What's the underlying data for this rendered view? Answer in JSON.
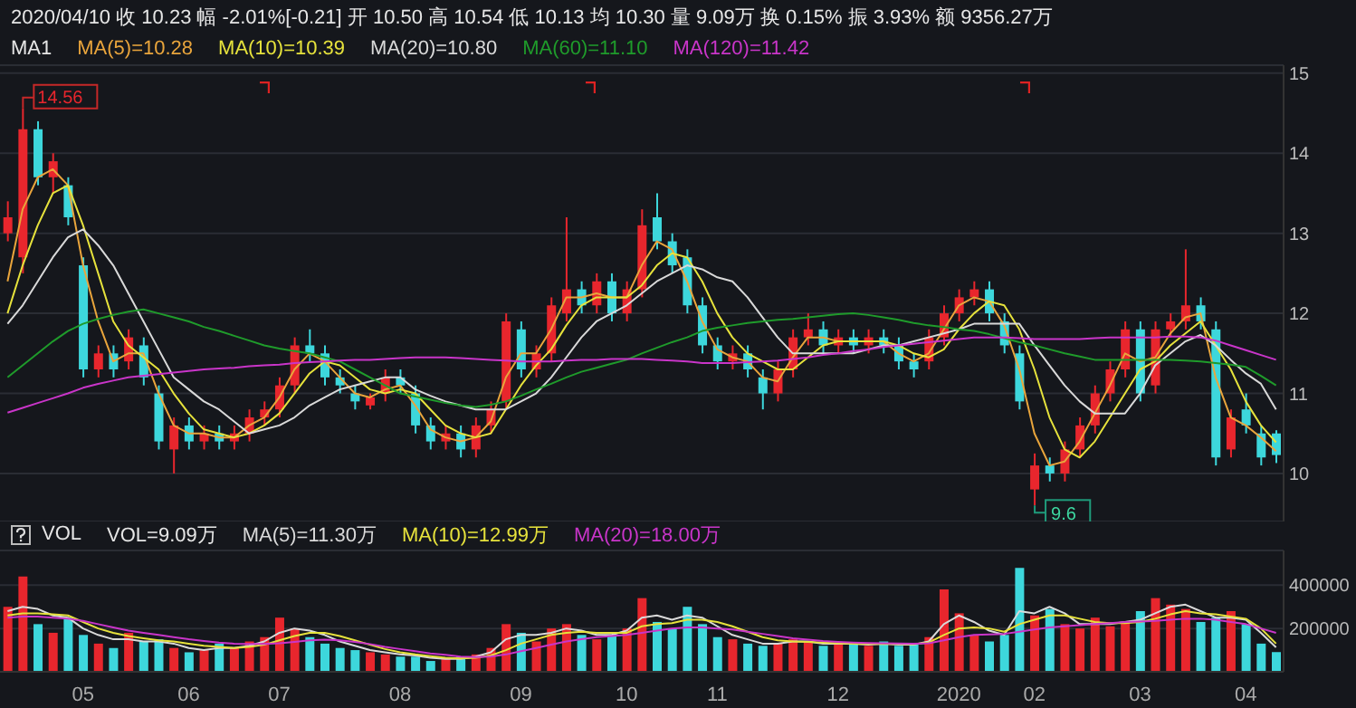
{
  "chart_data": [
    {
      "type": "candlestick",
      "title": "2020/04/10 收 10.23 幅 -2.01%[-0.21] 开 10.50 高 10.54 低 10.13 均 10.30 量 9.09万 换 0.15% 振 3.93% 额 9356.27万",
      "annotations": [
        "MA1",
        "14.56",
        "9.6"
      ],
      "categories": [
        null,
        null,
        null,
        null,
        null,
        "05",
        null,
        null,
        null,
        null,
        null,
        null,
        "06",
        null,
        null,
        null,
        null,
        null,
        "07",
        null,
        null,
        null,
        null,
        null,
        null,
        null,
        "08",
        null,
        null,
        null,
        null,
        null,
        null,
        null,
        "09",
        null,
        null,
        null,
        null,
        null,
        null,
        "10",
        null,
        null,
        null,
        null,
        null,
        "11",
        null,
        null,
        null,
        null,
        null,
        null,
        null,
        "12",
        null,
        null,
        null,
        null,
        null,
        null,
        null,
        "2020",
        null,
        null,
        null,
        null,
        "02",
        null,
        null,
        null,
        null,
        null,
        null,
        "03",
        null,
        null,
        null,
        null,
        null,
        null,
        "04",
        null,
        null
      ],
      "ohlc": [
        [
          13.0,
          13.4,
          12.9,
          13.2
        ],
        [
          12.7,
          14.56,
          12.5,
          14.3
        ],
        [
          14.3,
          14.4,
          13.6,
          13.7
        ],
        [
          13.7,
          14.0,
          13.5,
          13.9
        ],
        [
          13.6,
          13.7,
          13.1,
          13.2
        ],
        [
          12.6,
          12.7,
          11.2,
          11.3
        ],
        [
          11.3,
          11.6,
          11.2,
          11.5
        ],
        [
          11.5,
          11.6,
          11.2,
          11.3
        ],
        [
          11.4,
          11.8,
          11.3,
          11.7
        ],
        [
          11.6,
          11.7,
          11.1,
          11.2
        ],
        [
          11.0,
          11.1,
          10.3,
          10.4
        ],
        [
          10.3,
          10.7,
          10.0,
          10.6
        ],
        [
          10.6,
          10.7,
          10.3,
          10.4
        ],
        [
          10.4,
          10.6,
          10.3,
          10.5
        ],
        [
          10.5,
          10.6,
          10.3,
          10.4
        ],
        [
          10.4,
          10.6,
          10.3,
          10.5
        ],
        [
          10.5,
          10.8,
          10.4,
          10.7
        ],
        [
          10.7,
          10.9,
          10.6,
          10.8
        ],
        [
          10.8,
          11.2,
          10.7,
          11.1
        ],
        [
          11.1,
          11.7,
          11.0,
          11.6
        ],
        [
          11.6,
          11.8,
          11.4,
          11.5
        ],
        [
          11.5,
          11.6,
          11.1,
          11.2
        ],
        [
          11.2,
          11.3,
          11.0,
          11.1
        ],
        [
          11.0,
          11.1,
          10.8,
          10.9
        ],
        [
          10.85,
          11.0,
          10.8,
          10.95
        ],
        [
          11.0,
          11.3,
          10.9,
          11.2
        ],
        [
          11.2,
          11.3,
          11.0,
          11.1
        ],
        [
          11.0,
          11.1,
          10.5,
          10.6
        ],
        [
          10.6,
          10.7,
          10.3,
          10.4
        ],
        [
          10.4,
          10.6,
          10.3,
          10.5
        ],
        [
          10.5,
          10.6,
          10.2,
          10.3
        ],
        [
          10.3,
          10.7,
          10.2,
          10.6
        ],
        [
          10.6,
          10.9,
          10.5,
          10.8
        ],
        [
          10.9,
          12.0,
          10.8,
          11.9
        ],
        [
          11.8,
          11.9,
          11.2,
          11.3
        ],
        [
          11.3,
          11.6,
          11.2,
          11.5
        ],
        [
          11.5,
          12.2,
          11.4,
          12.1
        ],
        [
          12.0,
          13.2,
          11.9,
          12.3
        ],
        [
          12.3,
          12.4,
          12.0,
          12.1
        ],
        [
          12.1,
          12.5,
          12.0,
          12.4
        ],
        [
          12.4,
          12.5,
          11.9,
          12.0
        ],
        [
          12.0,
          12.4,
          11.9,
          12.3
        ],
        [
          12.3,
          13.3,
          12.2,
          13.1
        ],
        [
          13.2,
          13.5,
          12.8,
          12.9
        ],
        [
          12.9,
          13.0,
          12.5,
          12.6
        ],
        [
          12.7,
          12.8,
          12.0,
          12.1
        ],
        [
          12.1,
          12.2,
          11.5,
          11.6
        ],
        [
          11.6,
          11.7,
          11.3,
          11.4
        ],
        [
          11.4,
          11.6,
          11.3,
          11.5
        ],
        [
          11.5,
          11.6,
          11.2,
          11.3
        ],
        [
          11.2,
          11.3,
          10.8,
          11.0
        ],
        [
          11.0,
          11.4,
          10.9,
          11.3
        ],
        [
          11.3,
          11.8,
          11.2,
          11.7
        ],
        [
          11.7,
          12.0,
          11.6,
          11.8
        ],
        [
          11.8,
          11.9,
          11.5,
          11.6
        ],
        [
          11.6,
          11.8,
          11.5,
          11.7
        ],
        [
          11.7,
          11.8,
          11.5,
          11.6
        ],
        [
          11.6,
          11.8,
          11.5,
          11.7
        ],
        [
          11.7,
          11.8,
          11.5,
          11.6
        ],
        [
          11.6,
          11.7,
          11.3,
          11.4
        ],
        [
          11.4,
          11.5,
          11.2,
          11.3
        ],
        [
          11.4,
          11.8,
          11.3,
          11.7
        ],
        [
          11.7,
          12.1,
          11.6,
          12.0
        ],
        [
          12.0,
          12.3,
          11.9,
          12.2
        ],
        [
          12.2,
          12.4,
          12.1,
          12.3
        ],
        [
          12.3,
          12.4,
          11.9,
          12.0
        ],
        [
          11.9,
          12.0,
          11.5,
          11.6
        ],
        [
          11.5,
          11.6,
          10.8,
          10.9
        ],
        [
          9.8,
          10.25,
          9.6,
          10.1
        ],
        [
          10.1,
          10.2,
          9.9,
          10.0
        ],
        [
          10.0,
          10.4,
          9.9,
          10.3
        ],
        [
          10.3,
          10.7,
          10.2,
          10.6
        ],
        [
          10.6,
          11.1,
          10.5,
          11.0
        ],
        [
          11.0,
          11.4,
          10.9,
          11.3
        ],
        [
          11.3,
          11.9,
          11.2,
          11.8
        ],
        [
          11.8,
          11.9,
          10.9,
          11.0
        ],
        [
          11.1,
          11.9,
          11.0,
          11.8
        ],
        [
          11.8,
          12.0,
          11.7,
          11.9
        ],
        [
          11.9,
          12.8,
          11.8,
          12.1
        ],
        [
          12.1,
          12.2,
          11.8,
          11.9
        ],
        [
          11.8,
          11.9,
          10.1,
          10.2
        ],
        [
          10.3,
          10.8,
          10.2,
          10.7
        ],
        [
          10.8,
          11.0,
          10.5,
          10.6
        ],
        [
          10.5,
          10.6,
          10.1,
          10.2
        ],
        [
          10.5,
          10.54,
          10.13,
          10.23
        ]
      ],
      "colors": [
        "#e8262d",
        "#e8262d",
        "#3dd7dc",
        "#e8262d",
        "#3dd7dc",
        "#3dd7dc",
        "#e8262d",
        "#3dd7dc",
        "#e8262d",
        "#3dd7dc",
        "#3dd7dc",
        "#e8262d",
        "#3dd7dc",
        "#e8262d",
        "#3dd7dc",
        "#e8262d",
        "#e8262d",
        "#e8262d",
        "#e8262d",
        "#e8262d",
        "#3dd7dc",
        "#3dd7dc",
        "#3dd7dc",
        "#3dd7dc",
        "#e8262d",
        "#e8262d",
        "#3dd7dc",
        "#3dd7dc",
        "#3dd7dc",
        "#e8262d",
        "#3dd7dc",
        "#e8262d",
        "#e8262d",
        "#e8262d",
        "#3dd7dc",
        "#e8262d",
        "#e8262d",
        "#e8262d",
        "#3dd7dc",
        "#e8262d",
        "#3dd7dc",
        "#e8262d",
        "#e8262d",
        "#3dd7dc",
        "#3dd7dc",
        "#3dd7dc",
        "#3dd7dc",
        "#3dd7dc",
        "#e8262d",
        "#3dd7dc",
        "#3dd7dc",
        "#e8262d",
        "#e8262d",
        "#e8262d",
        "#3dd7dc",
        "#e8262d",
        "#3dd7dc",
        "#e8262d",
        "#3dd7dc",
        "#3dd7dc",
        "#3dd7dc",
        "#e8262d",
        "#e8262d",
        "#e8262d",
        "#e8262d",
        "#3dd7dc",
        "#3dd7dc",
        "#3dd7dc",
        "#e8262d",
        "#3dd7dc",
        "#e8262d",
        "#e8262d",
        "#e8262d",
        "#e8262d",
        "#e8262d",
        "#3dd7dc",
        "#e8262d",
        "#e8262d",
        "#e8262d",
        "#3dd7dc",
        "#3dd7dc",
        "#e8262d",
        "#3dd7dc",
        "#3dd7dc",
        "#3dd7dc"
      ],
      "series": [
        {
          "name": "MA(5)=10.28",
          "type": "line",
          "color": "#e9a53c",
          "values": [
            12.4,
            13.3,
            13.7,
            13.8,
            13.6,
            12.6,
            11.9,
            11.4,
            11.5,
            11.5,
            11.0,
            10.6,
            10.5,
            10.5,
            10.45,
            10.45,
            10.6,
            10.7,
            10.95,
            11.3,
            11.5,
            11.4,
            11.2,
            11.0,
            10.95,
            11.05,
            11.1,
            10.85,
            10.55,
            10.45,
            10.4,
            10.45,
            10.65,
            11.2,
            11.5,
            11.5,
            11.8,
            12.2,
            12.2,
            12.25,
            12.2,
            12.2,
            12.6,
            12.9,
            12.8,
            12.4,
            11.9,
            11.55,
            11.45,
            11.4,
            11.2,
            11.15,
            11.45,
            11.7,
            11.7,
            11.65,
            11.65,
            11.65,
            11.65,
            11.5,
            11.4,
            11.5,
            11.8,
            12.1,
            12.2,
            12.15,
            11.85,
            11.3,
            10.5,
            10.1,
            10.15,
            10.4,
            10.75,
            11.1,
            11.5,
            11.4,
            11.45,
            11.75,
            11.95,
            12.0,
            11.2,
            10.7,
            10.6,
            10.45,
            10.28
          ]
        },
        {
          "name": "MA(10)=10.39",
          "type": "line",
          "color": "#e6e23c",
          "values": [
            12.0,
            12.6,
            13.1,
            13.5,
            13.6,
            13.1,
            12.5,
            11.9,
            11.6,
            11.45,
            11.3,
            11.0,
            10.75,
            10.55,
            10.5,
            10.45,
            10.5,
            10.6,
            10.75,
            11.0,
            11.25,
            11.4,
            11.35,
            11.2,
            11.05,
            11.0,
            11.05,
            11.0,
            10.8,
            10.6,
            10.5,
            10.45,
            10.5,
            10.8,
            11.1,
            11.35,
            11.55,
            11.85,
            12.1,
            12.2,
            12.2,
            12.2,
            12.35,
            12.6,
            12.75,
            12.7,
            12.4,
            12.0,
            11.7,
            11.5,
            11.4,
            11.3,
            11.3,
            11.45,
            11.6,
            11.65,
            11.65,
            11.65,
            11.65,
            11.6,
            11.5,
            11.45,
            11.55,
            11.8,
            12.0,
            12.15,
            12.1,
            11.8,
            11.3,
            10.7,
            10.3,
            10.2,
            10.4,
            10.7,
            11.0,
            11.3,
            11.4,
            11.6,
            11.75,
            11.9,
            11.6,
            11.3,
            10.9,
            10.6,
            10.39
          ]
        },
        {
          "name": "MA(20)=10.80",
          "type": "line",
          "color": "#d9d9d9",
          "values": [
            11.87,
            12.1,
            12.4,
            12.7,
            12.95,
            13.05,
            12.85,
            12.6,
            12.25,
            11.9,
            11.55,
            11.2,
            11.05,
            10.9,
            10.8,
            10.65,
            10.5,
            10.55,
            10.6,
            10.7,
            10.85,
            10.95,
            11.05,
            11.1,
            11.15,
            11.2,
            11.2,
            11.05,
            10.97,
            10.9,
            10.85,
            10.8,
            10.8,
            10.8,
            10.9,
            11.0,
            11.2,
            11.45,
            11.7,
            11.9,
            12.0,
            12.1,
            12.25,
            12.4,
            12.5,
            12.6,
            12.55,
            12.45,
            12.4,
            12.2,
            11.95,
            11.7,
            11.5,
            11.5,
            11.5,
            11.5,
            11.5,
            11.55,
            11.6,
            11.6,
            11.65,
            11.7,
            11.75,
            11.8,
            11.87,
            11.87,
            11.87,
            11.87,
            11.6,
            11.35,
            11.1,
            10.9,
            10.75,
            10.75,
            10.75,
            11.0,
            11.35,
            11.5,
            11.65,
            11.73,
            11.6,
            11.42,
            11.25,
            11.12,
            10.8
          ]
        },
        {
          "name": "MA(60)=11.10",
          "type": "line",
          "color": "#1f9b2b",
          "values": [
            11.2,
            11.35,
            11.5,
            11.65,
            11.78,
            11.87,
            11.93,
            11.98,
            12.02,
            12.05,
            12.0,
            11.95,
            11.9,
            11.83,
            11.78,
            11.72,
            11.66,
            11.6,
            11.56,
            11.53,
            11.5,
            11.45,
            11.4,
            11.3,
            11.2,
            11.1,
            11.0,
            10.96,
            10.92,
            10.88,
            10.85,
            10.83,
            10.86,
            10.9,
            10.97,
            11.05,
            11.12,
            11.2,
            11.27,
            11.32,
            11.37,
            11.42,
            11.5,
            11.57,
            11.64,
            11.7,
            11.78,
            11.82,
            11.85,
            11.88,
            11.9,
            11.92,
            11.93,
            11.95,
            11.97,
            11.99,
            12.0,
            11.98,
            11.95,
            11.92,
            11.88,
            11.85,
            11.83,
            11.8,
            11.78,
            11.74,
            11.69,
            11.64,
            11.6,
            11.55,
            11.5,
            11.46,
            11.42,
            11.42,
            11.42,
            11.42,
            11.42,
            11.42,
            11.41,
            11.4,
            11.38,
            11.36,
            11.33,
            11.22,
            11.1
          ]
        },
        {
          "name": "MA(120)=11.42",
          "type": "line",
          "color": "#c935c9",
          "values": [
            10.76,
            10.82,
            10.88,
            10.94,
            11.0,
            11.07,
            11.12,
            11.16,
            11.2,
            11.22,
            11.24,
            11.26,
            11.28,
            11.3,
            11.31,
            11.32,
            11.34,
            11.35,
            11.36,
            11.38,
            11.39,
            11.4,
            11.41,
            11.42,
            11.42,
            11.43,
            11.44,
            11.45,
            11.45,
            11.45,
            11.44,
            11.43,
            11.42,
            11.41,
            11.4,
            11.4,
            11.4,
            11.41,
            11.42,
            11.42,
            11.43,
            11.43,
            11.43,
            11.42,
            11.41,
            11.4,
            11.38,
            11.38,
            11.38,
            11.39,
            11.4,
            11.41,
            11.43,
            11.45,
            11.48,
            11.5,
            11.53,
            11.55,
            11.58,
            11.6,
            11.62,
            11.64,
            11.66,
            11.68,
            11.7,
            11.7,
            11.7,
            11.69,
            11.68,
            11.68,
            11.68,
            11.68,
            11.69,
            11.7,
            11.7,
            11.7,
            11.7,
            11.71,
            11.71,
            11.7,
            11.66,
            11.6,
            11.54,
            11.48,
            11.42
          ]
        }
      ],
      "ylim": [
        9.4,
        15.1
      ],
      "yticks": [
        10,
        11,
        12,
        13,
        14,
        15
      ],
      "grid": "y",
      "legend": "top left",
      "tick_labels": "y"
    },
    {
      "type": "bar",
      "title": "VOL",
      "annotations": [
        "VOL=9.09万"
      ],
      "categories": [
        null,
        null,
        null,
        null,
        null,
        "05",
        null,
        null,
        null,
        null,
        null,
        null,
        "06",
        null,
        null,
        null,
        null,
        null,
        "07",
        null,
        null,
        null,
        null,
        null,
        null,
        null,
        "08",
        null,
        null,
        null,
        null,
        null,
        null,
        null,
        "09",
        null,
        null,
        null,
        null,
        null,
        null,
        "10",
        null,
        null,
        null,
        null,
        null,
        "11",
        null,
        null,
        null,
        null,
        null,
        null,
        null,
        "12",
        null,
        null,
        null,
        null,
        null,
        null,
        null,
        "2020",
        null,
        null,
        null,
        null,
        "02",
        null,
        null,
        null,
        null,
        null,
        null,
        "03",
        null,
        null,
        null,
        null,
        null,
        null,
        "04",
        null,
        null
      ],
      "series": [
        {
          "values": [
            300000,
            440000,
            220000,
            180000,
            250000,
            170000,
            130000,
            110000,
            180000,
            140000,
            150000,
            110000,
            90000,
            100000,
            130000,
            110000,
            140000,
            160000,
            250000,
            200000,
            160000,
            130000,
            110000,
            100000,
            90000,
            80000,
            70000,
            70000,
            50000,
            60000,
            70000,
            80000,
            110000,
            220000,
            180000,
            140000,
            200000,
            220000,
            170000,
            150000,
            170000,
            200000,
            340000,
            230000,
            200000,
            300000,
            220000,
            160000,
            150000,
            130000,
            120000,
            130000,
            150000,
            140000,
            120000,
            130000,
            130000,
            120000,
            140000,
            120000,
            130000,
            160000,
            380000,
            270000,
            170000,
            140000,
            170000,
            480000,
            260000,
            290000,
            220000,
            200000,
            250000,
            210000,
            230000,
            280000,
            340000,
            310000,
            290000,
            230000,
            250000,
            280000,
            220000,
            130000,
            90900
          ],
          "colors": [
            "#e8262d",
            "#e8262d",
            "#3dd7dc",
            "#e8262d",
            "#3dd7dc",
            "#3dd7dc",
            "#e8262d",
            "#3dd7dc",
            "#e8262d",
            "#3dd7dc",
            "#3dd7dc",
            "#e8262d",
            "#3dd7dc",
            "#e8262d",
            "#3dd7dc",
            "#e8262d",
            "#e8262d",
            "#e8262d",
            "#e8262d",
            "#e8262d",
            "#3dd7dc",
            "#3dd7dc",
            "#3dd7dc",
            "#3dd7dc",
            "#e8262d",
            "#e8262d",
            "#3dd7dc",
            "#3dd7dc",
            "#3dd7dc",
            "#e8262d",
            "#3dd7dc",
            "#e8262d",
            "#e8262d",
            "#e8262d",
            "#3dd7dc",
            "#e8262d",
            "#e8262d",
            "#e8262d",
            "#3dd7dc",
            "#e8262d",
            "#3dd7dc",
            "#e8262d",
            "#e8262d",
            "#3dd7dc",
            "#3dd7dc",
            "#3dd7dc",
            "#3dd7dc",
            "#3dd7dc",
            "#e8262d",
            "#3dd7dc",
            "#3dd7dc",
            "#e8262d",
            "#e8262d",
            "#e8262d",
            "#3dd7dc",
            "#e8262d",
            "#3dd7dc",
            "#e8262d",
            "#3dd7dc",
            "#3dd7dc",
            "#3dd7dc",
            "#e8262d",
            "#e8262d",
            "#e8262d",
            "#e8262d",
            "#3dd7dc",
            "#3dd7dc",
            "#3dd7dc",
            "#e8262d",
            "#3dd7dc",
            "#e8262d",
            "#e8262d",
            "#e8262d",
            "#e8262d",
            "#e8262d",
            "#3dd7dc",
            "#e8262d",
            "#e8262d",
            "#e8262d",
            "#3dd7dc",
            "#3dd7dc",
            "#e8262d",
            "#3dd7dc",
            "#3dd7dc",
            "#3dd7dc"
          ]
        },
        {
          "name": "MA(5)=11.30万",
          "type": "line",
          "color": "#d9d9d9",
          "values": [
            280000,
            300000,
            290000,
            260000,
            250000,
            200000,
            170000,
            150000,
            150000,
            140000,
            140000,
            130000,
            110000,
            100000,
            110000,
            110000,
            120000,
            140000,
            180000,
            200000,
            190000,
            170000,
            140000,
            120000,
            100000,
            90000,
            80000,
            75000,
            65000,
            60000,
            60000,
            70000,
            90000,
            150000,
            170000,
            170000,
            180000,
            200000,
            190000,
            170000,
            170000,
            190000,
            250000,
            260000,
            240000,
            260000,
            250000,
            210000,
            170000,
            150000,
            130000,
            130000,
            140000,
            140000,
            130000,
            130000,
            130000,
            125000,
            130000,
            125000,
            125000,
            140000,
            220000,
            260000,
            230000,
            190000,
            170000,
            280000,
            270000,
            300000,
            270000,
            220000,
            220000,
            220000,
            230000,
            240000,
            270000,
            300000,
            310000,
            280000,
            250000,
            250000,
            240000,
            180000,
            113000
          ]
        },
        {
          "name": "MA(10)=12.99万",
          "type": "line",
          "color": "#e6e23c",
          "values": [
            260000,
            270000,
            270000,
            265000,
            260000,
            230000,
            200000,
            180000,
            165000,
            155000,
            145000,
            140000,
            130000,
            120000,
            115000,
            110000,
            115000,
            125000,
            145000,
            165000,
            180000,
            180000,
            165000,
            145000,
            125000,
            105000,
            90000,
            80000,
            72000,
            65000,
            62000,
            65000,
            75000,
            100000,
            130000,
            150000,
            170000,
            180000,
            185000,
            180000,
            180000,
            180000,
            210000,
            220000,
            225000,
            240000,
            240000,
            230000,
            210000,
            185000,
            160000,
            145000,
            140000,
            138000,
            135000,
            132000,
            130000,
            128000,
            130000,
            128000,
            127000,
            135000,
            170000,
            200000,
            205000,
            200000,
            185000,
            220000,
            240000,
            260000,
            260000,
            245000,
            230000,
            225000,
            225000,
            230000,
            245000,
            265000,
            280000,
            270000,
            265000,
            255000,
            245000,
            200000,
            129900
          ]
        },
        {
          "name": "MA(20)=18.00万",
          "type": "line",
          "color": "#c935c9",
          "values": [
            250000,
            255000,
            255000,
            250000,
            245000,
            235000,
            220000,
            205000,
            190000,
            180000,
            170000,
            160000,
            150000,
            142000,
            135000,
            130000,
            128000,
            128000,
            132000,
            138000,
            145000,
            148000,
            145000,
            138000,
            128000,
            115000,
            105000,
            95000,
            85000,
            78000,
            70000,
            68000,
            70000,
            80000,
            95000,
            110000,
            125000,
            140000,
            150000,
            160000,
            165000,
            170000,
            180000,
            190000,
            200000,
            205000,
            205000,
            200000,
            195000,
            185000,
            175000,
            165000,
            155000,
            148000,
            142000,
            138000,
            135000,
            133000,
            132000,
            131000,
            130000,
            132000,
            145000,
            160000,
            170000,
            172000,
            175000,
            185000,
            195000,
            205000,
            210000,
            215000,
            220000,
            225000,
            230000,
            232000,
            235000,
            240000,
            245000,
            245000,
            240000,
            230000,
            220000,
            200000,
            180000
          ]
        }
      ],
      "ylim": [
        0,
        560000
      ],
      "yticks": [
        200000,
        400000
      ],
      "grid": "y",
      "legend": "top left"
    }
  ]
}
